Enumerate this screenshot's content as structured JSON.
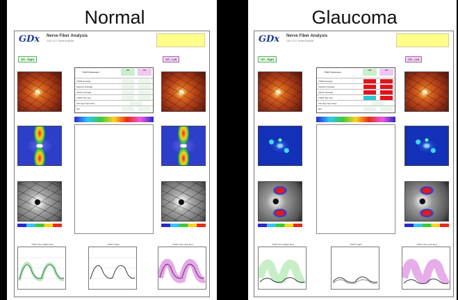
{
  "titles": {
    "normal": "Normal",
    "glaucoma": "Glaucoma"
  },
  "report": {
    "logo": "GDx",
    "title": "Nerve Fiber Analysis",
    "subtitle": "GDx VCC Serial Analysis",
    "eye_od": "OD - Right",
    "eye_os": "OS - Left"
  },
  "table_header": [
    "TSNIT Parameters",
    "OD",
    "OS"
  ],
  "table_rows": [
    "TSNIT Average",
    "Superior Average",
    "Inferior Average",
    "TSNIT Std. Dev.",
    "Inter-Eye Symmetry",
    "NFI"
  ],
  "colors": {
    "normal_cell": "#eaf5ea",
    "abnormal_red": "#e3121a",
    "abnormal_cyan": "#2ac6d8",
    "od_green": "#38b34a",
    "os_magenta": "#c042c8"
  },
  "chart_captions": [
    "TSNIT View (Right Eye)",
    "TSNIT Graph",
    "TSNIT View (Left Eye)"
  ]
}
